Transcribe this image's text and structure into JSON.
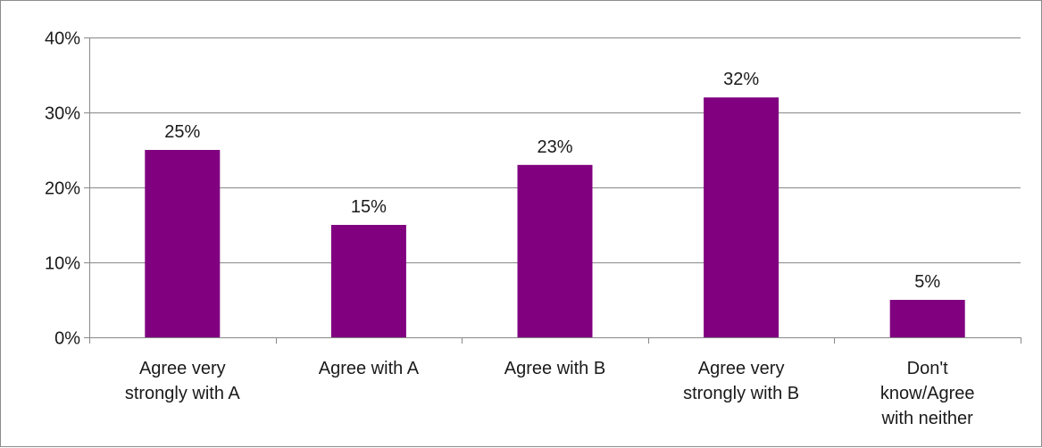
{
  "chart_data": {
    "type": "bar",
    "categories": [
      [
        "Agree very",
        "strongly with A"
      ],
      [
        "Agree with A"
      ],
      [
        "Agree with B"
      ],
      [
        "Agree very",
        "strongly with B"
      ],
      [
        "Don't",
        "know/Agree",
        "with neither"
      ]
    ],
    "values": [
      25,
      15,
      23,
      32,
      5
    ],
    "data_labels": [
      "25%",
      "15%",
      "23%",
      "32%",
      "5%"
    ],
    "y_ticks": [
      0,
      10,
      20,
      30,
      40
    ],
    "y_tick_labels": [
      "0%",
      "10%",
      "20%",
      "30%",
      "40%"
    ],
    "ylim": [
      0,
      40
    ],
    "title": "",
    "xlabel": "",
    "ylabel": "",
    "grid": true,
    "legend": "none",
    "bar_color": "#800080",
    "gridline_color": "#888888"
  }
}
